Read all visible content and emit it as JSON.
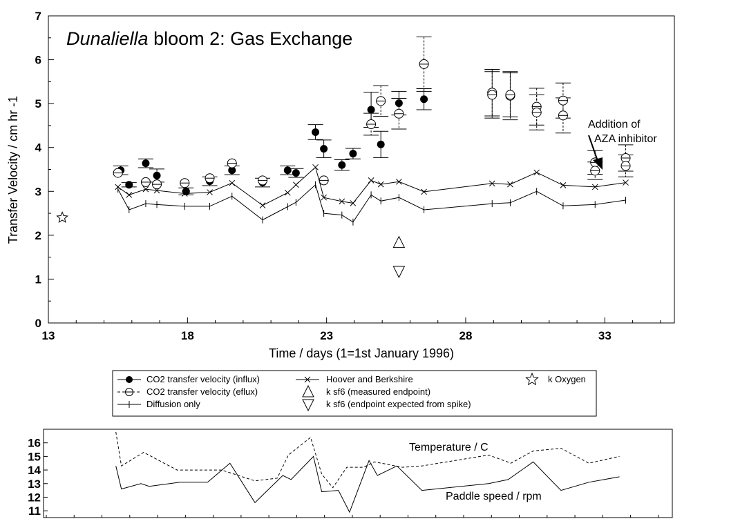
{
  "chart_data": [
    {
      "type": "scatter",
      "title_italic": "Dunaliella",
      "title_rest": " bloom 2: Gas Exchange",
      "xlabel": "Time / days (1=1st January 1996)",
      "ylabel": "Transfer Velocity / cm hr -1",
      "xlim": [
        13,
        35.5
      ],
      "ylim": [
        0,
        7
      ],
      "xticks": [
        "13",
        "18",
        "23",
        "28",
        "33"
      ],
      "yticks": [
        "0",
        "1",
        "2",
        "3",
        "4",
        "5",
        "6",
        "7"
      ],
      "grid": false,
      "legend_position": "below",
      "annotation": {
        "line1": "Addition of",
        "line2": "AZA inhibitor"
      },
      "series": [
        {
          "name": "CO2 transfer velocity (influx)",
          "marker": "filled-circle",
          "error_bars": "solid",
          "points": [
            {
              "x": 15.6,
              "y": 3.48,
              "err": 0.1
            },
            {
              "x": 15.9,
              "y": 3.15,
              "err": 0.05
            },
            {
              "x": 16.5,
              "y": 3.64,
              "err": 0.1
            },
            {
              "x": 16.9,
              "y": 3.36,
              "err": 0.15
            },
            {
              "x": 17.95,
              "y": 3.0,
              "err": 0.08
            },
            {
              "x": 18.8,
              "y": 3.23,
              "err": 0.1
            },
            {
              "x": 19.6,
              "y": 3.48,
              "err": 0.1
            },
            {
              "x": 20.7,
              "y": 3.2,
              "err": 0.1
            },
            {
              "x": 21.6,
              "y": 3.48,
              "err": 0.1
            },
            {
              "x": 21.9,
              "y": 3.42,
              "err": 0.1
            },
            {
              "x": 22.6,
              "y": 4.35,
              "err": 0.17
            },
            {
              "x": 22.9,
              "y": 3.97,
              "err": 0.2
            },
            {
              "x": 23.55,
              "y": 3.6,
              "err": 0.12
            },
            {
              "x": 23.95,
              "y": 3.86,
              "err": 0.12
            },
            {
              "x": 24.6,
              "y": 4.86,
              "err": 0.4
            },
            {
              "x": 24.95,
              "y": 4.07,
              "err": 0.3
            },
            {
              "x": 25.6,
              "y": 5.01,
              "err": 0.27
            },
            {
              "x": 26.5,
              "y": 5.1,
              "err": 0.24
            }
          ]
        },
        {
          "name": "CO2 transfer velocity (eflux)",
          "marker": "open-circle",
          "error_bars": "dashed",
          "points": [
            {
              "x": 15.5,
              "y": 3.42,
              "err": 0.0
            },
            {
              "x": 16.5,
              "y": 3.21,
              "err": 0.0
            },
            {
              "x": 16.9,
              "y": 3.16,
              "err": 0.0
            },
            {
              "x": 17.9,
              "y": 3.19,
              "err": 0.0
            },
            {
              "x": 18.8,
              "y": 3.3,
              "err": 0.0
            },
            {
              "x": 19.6,
              "y": 3.64,
              "err": 0.0
            },
            {
              "x": 20.7,
              "y": 3.25,
              "err": 0.0
            },
            {
              "x": 22.9,
              "y": 3.25,
              "err": 0.0
            },
            {
              "x": 24.6,
              "y": 4.53,
              "err": 0.25
            },
            {
              "x": 24.95,
              "y": 5.06,
              "err": 0.35
            },
            {
              "x": 25.6,
              "y": 4.77,
              "err": 0.35
            },
            {
              "x": 26.5,
              "y": 5.9,
              "err": 0.62
            },
            {
              "x": 28.95,
              "y": 5.25,
              "err": 0.53
            },
            {
              "x": 28.95,
              "y": 5.2,
              "err": 0.53
            },
            {
              "x": 29.6,
              "y": 5.18,
              "err": 0.55
            },
            {
              "x": 29.6,
              "y": 5.2,
              "err": 0.5
            },
            {
              "x": 30.55,
              "y": 4.93,
              "err": 0.42
            },
            {
              "x": 30.55,
              "y": 4.8,
              "err": 0.4
            },
            {
              "x": 31.5,
              "y": 4.73,
              "err": 0.4
            },
            {
              "x": 31.5,
              "y": 5.07,
              "err": 0.4
            },
            {
              "x": 32.65,
              "y": 3.66,
              "err": 0.27
            },
            {
              "x": 32.65,
              "y": 3.47,
              "err": 0.2
            },
            {
              "x": 33.75,
              "y": 3.76,
              "err": 0.3
            },
            {
              "x": 33.75,
              "y": 3.58,
              "err": 0.25
            }
          ]
        },
        {
          "name": "Diffusion only",
          "marker": "plus",
          "line": "solid",
          "points": [
            {
              "x": 15.5,
              "y": 3.05
            },
            {
              "x": 15.9,
              "y": 2.58
            },
            {
              "x": 16.5,
              "y": 2.72
            },
            {
              "x": 16.9,
              "y": 2.7
            },
            {
              "x": 17.9,
              "y": 2.66
            },
            {
              "x": 18.8,
              "y": 2.66
            },
            {
              "x": 19.6,
              "y": 2.89
            },
            {
              "x": 20.7,
              "y": 2.35
            },
            {
              "x": 21.6,
              "y": 2.65
            },
            {
              "x": 21.9,
              "y": 2.75
            },
            {
              "x": 22.6,
              "y": 3.15
            },
            {
              "x": 22.9,
              "y": 2.5
            },
            {
              "x": 23.55,
              "y": 2.46
            },
            {
              "x": 23.95,
              "y": 2.3
            },
            {
              "x": 24.6,
              "y": 2.92
            },
            {
              "x": 24.95,
              "y": 2.78
            },
            {
              "x": 25.6,
              "y": 2.86
            },
            {
              "x": 26.5,
              "y": 2.58
            },
            {
              "x": 28.95,
              "y": 2.72
            },
            {
              "x": 29.6,
              "y": 2.74
            },
            {
              "x": 30.55,
              "y": 3.0
            },
            {
              "x": 31.5,
              "y": 2.67
            },
            {
              "x": 32.65,
              "y": 2.7
            },
            {
              "x": 33.75,
              "y": 2.8
            }
          ]
        },
        {
          "name": "Hoover and Berkshire",
          "marker": "cross",
          "line": "solid",
          "points": [
            {
              "x": 15.5,
              "y": 3.1
            },
            {
              "x": 15.9,
              "y": 2.92
            },
            {
              "x": 16.5,
              "y": 3.05
            },
            {
              "x": 16.9,
              "y": 3.02
            },
            {
              "x": 17.9,
              "y": 2.95
            },
            {
              "x": 18.8,
              "y": 2.98
            },
            {
              "x": 19.6,
              "y": 3.19
            },
            {
              "x": 20.7,
              "y": 2.68
            },
            {
              "x": 21.6,
              "y": 2.97
            },
            {
              "x": 21.9,
              "y": 3.15
            },
            {
              "x": 22.6,
              "y": 3.55
            },
            {
              "x": 22.9,
              "y": 2.86
            },
            {
              "x": 23.55,
              "y": 2.77
            },
            {
              "x": 23.95,
              "y": 2.73
            },
            {
              "x": 24.6,
              "y": 3.25
            },
            {
              "x": 24.95,
              "y": 3.16
            },
            {
              "x": 25.6,
              "y": 3.22
            },
            {
              "x": 26.5,
              "y": 2.99
            },
            {
              "x": 28.95,
              "y": 3.18
            },
            {
              "x": 29.6,
              "y": 3.16
            },
            {
              "x": 30.55,
              "y": 3.43
            },
            {
              "x": 31.5,
              "y": 3.14
            },
            {
              "x": 32.65,
              "y": 3.1
            },
            {
              "x": 33.75,
              "y": 3.2
            }
          ]
        },
        {
          "name": "k sf6 (measured endpoint)",
          "marker": "triangle-up",
          "points": [
            {
              "x": 25.6,
              "y": 1.83
            }
          ]
        },
        {
          "name": "k sf6 (endpoint expected from spike)",
          "marker": "triangle-down",
          "points": [
            {
              "x": 25.6,
              "y": 1.18
            }
          ]
        },
        {
          "name": "k Oxygen",
          "marker": "star",
          "points": [
            {
              "x": 13.5,
              "y": 2.4
            }
          ]
        }
      ]
    },
    {
      "type": "line",
      "xlim": [
        13,
        35.5
      ],
      "ylim": [
        10.5,
        17
      ],
      "yticks": [
        "11",
        "12",
        "13",
        "14",
        "15",
        "16"
      ],
      "series": [
        {
          "name": "Temperature / C",
          "line": "dashed",
          "points": [
            {
              "x": 15.5,
              "y": 16.8
            },
            {
              "x": 15.7,
              "y": 14.3
            },
            {
              "x": 16.5,
              "y": 15.3
            },
            {
              "x": 17.7,
              "y": 14.0
            },
            {
              "x": 19.3,
              "y": 14.0
            },
            {
              "x": 20.5,
              "y": 13.2
            },
            {
              "x": 21.3,
              "y": 13.4
            },
            {
              "x": 21.7,
              "y": 15.1
            },
            {
              "x": 22.5,
              "y": 16.4
            },
            {
              "x": 22.9,
              "y": 13.7
            },
            {
              "x": 23.3,
              "y": 12.7
            },
            {
              "x": 23.8,
              "y": 14.2
            },
            {
              "x": 24.4,
              "y": 14.2
            },
            {
              "x": 24.8,
              "y": 14.6
            },
            {
              "x": 25.8,
              "y": 14.2
            },
            {
              "x": 26.5,
              "y": 14.3
            },
            {
              "x": 28.0,
              "y": 14.8
            },
            {
              "x": 28.9,
              "y": 15.1
            },
            {
              "x": 29.7,
              "y": 14.5
            },
            {
              "x": 30.5,
              "y": 15.4
            },
            {
              "x": 31.5,
              "y": 15.6
            },
            {
              "x": 32.5,
              "y": 14.5
            },
            {
              "x": 33.6,
              "y": 15.0
            }
          ]
        },
        {
          "name": "Paddle speed / rpm",
          "line": "solid",
          "points": [
            {
              "x": 15.5,
              "y": 14.3
            },
            {
              "x": 15.7,
              "y": 12.6
            },
            {
              "x": 16.4,
              "y": 13.0
            },
            {
              "x": 16.7,
              "y": 12.8
            },
            {
              "x": 17.8,
              "y": 13.1
            },
            {
              "x": 18.8,
              "y": 13.1
            },
            {
              "x": 19.6,
              "y": 14.5
            },
            {
              "x": 20.5,
              "y": 11.6
            },
            {
              "x": 21.5,
              "y": 13.6
            },
            {
              "x": 21.8,
              "y": 13.3
            },
            {
              "x": 22.6,
              "y": 15.0
            },
            {
              "x": 22.9,
              "y": 12.4
            },
            {
              "x": 23.5,
              "y": 12.5
            },
            {
              "x": 23.9,
              "y": 10.9
            },
            {
              "x": 24.6,
              "y": 14.7
            },
            {
              "x": 24.9,
              "y": 13.6
            },
            {
              "x": 25.6,
              "y": 14.3
            },
            {
              "x": 26.5,
              "y": 12.5
            },
            {
              "x": 28.9,
              "y": 13.0
            },
            {
              "x": 29.6,
              "y": 13.3
            },
            {
              "x": 30.5,
              "y": 14.6
            },
            {
              "x": 31.5,
              "y": 12.5
            },
            {
              "x": 32.5,
              "y": 13.1
            },
            {
              "x": 33.6,
              "y": 13.5
            }
          ]
        }
      ]
    }
  ]
}
